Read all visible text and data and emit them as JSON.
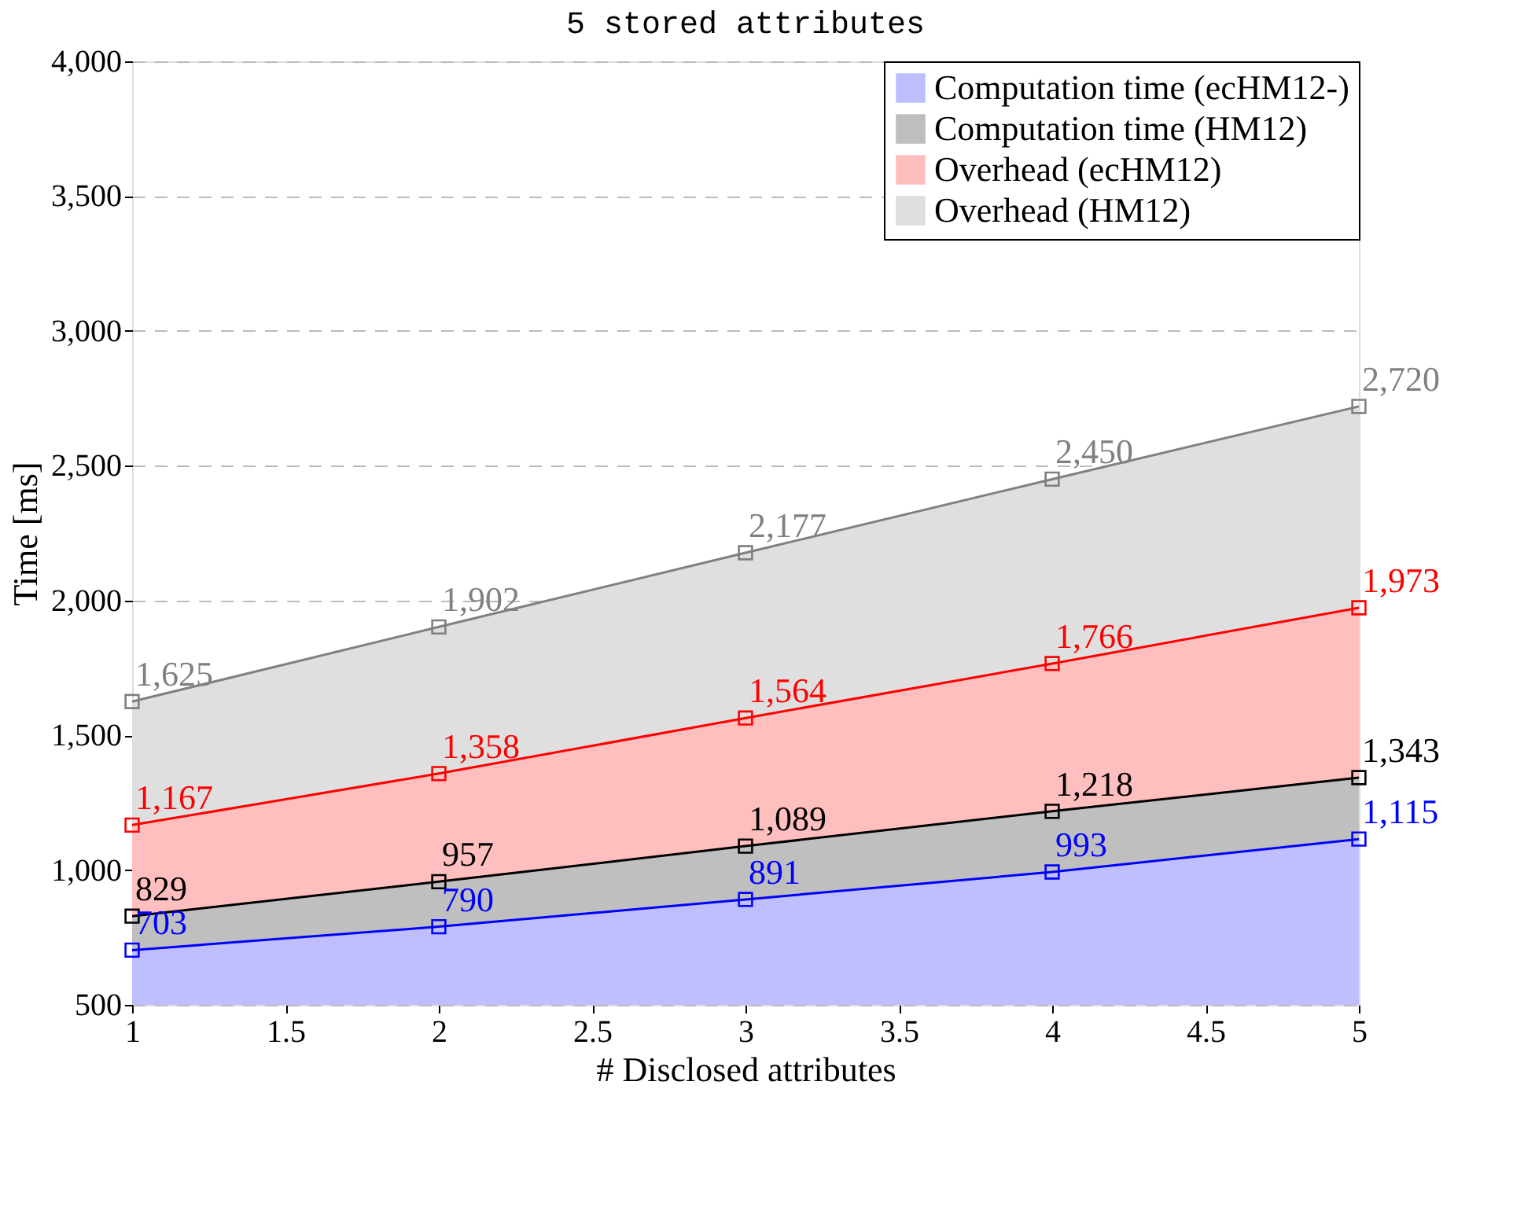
{
  "chart_data": {
    "type": "area",
    "title": "5 stored attributes",
    "xlabel": "# Disclosed attributes",
    "ylabel": "Time [ms]",
    "x": [
      1,
      2,
      3,
      4,
      5
    ],
    "series": [
      {
        "name": "Computation time (ecHM12-)",
        "color": "#0000ff",
        "values": [
          703,
          790,
          891,
          993,
          1115
        ],
        "value_labels": [
          "703",
          "790",
          "891",
          "993",
          "1,115"
        ]
      },
      {
        "name": "Computation time (HM12)",
        "color": "#000000",
        "values": [
          829,
          957,
          1089,
          1218,
          1343
        ],
        "value_labels": [
          "829",
          "957",
          "1,089",
          "1,218",
          "1,343"
        ]
      },
      {
        "name": "Overhead (ecHM12)",
        "color": "#ff0000",
        "values": [
          1167,
          1358,
          1564,
          1766,
          1973
        ],
        "value_labels": [
          "1,167",
          "1,358",
          "1,564",
          "1,766",
          "1,973"
        ]
      },
      {
        "name": "Overhead (HM12)",
        "color": "#808080",
        "values": [
          1625,
          1902,
          2177,
          2450,
          2720
        ],
        "value_labels": [
          "1,625",
          "1,902",
          "2,177",
          "2,450",
          "2,720"
        ]
      }
    ],
    "xlim": [
      1,
      5
    ],
    "xticks": [
      1,
      1.5,
      2,
      2.5,
      3,
      3.5,
      4,
      4.5,
      5
    ],
    "ylim": [
      500,
      4000
    ],
    "yticks": [
      {
        "value": 500,
        "label": "500"
      },
      {
        "value": 1000,
        "label": "1,000"
      },
      {
        "value": 1500,
        "label": "1,500"
      },
      {
        "value": 2000,
        "label": "2,000"
      },
      {
        "value": 2500,
        "label": "2,500"
      },
      {
        "value": 3000,
        "label": "3,000"
      },
      {
        "value": 3500,
        "label": "3,500"
      },
      {
        "value": 4000,
        "label": "4,000"
      }
    ],
    "grid": "y",
    "legend": "top right",
    "marker": "square",
    "line_style": "solid"
  }
}
